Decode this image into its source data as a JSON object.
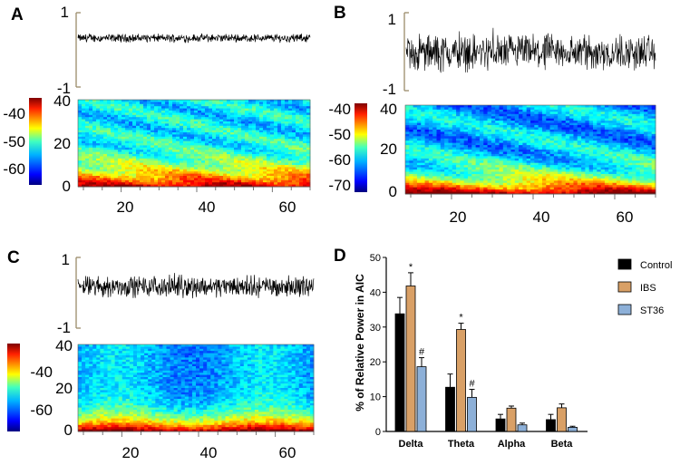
{
  "panels": {
    "A": {
      "letter": "A",
      "signal": {
        "y_top": "1",
        "y_bottom": "-1",
        "amplitude": 0.13
      },
      "spectrogram": {
        "yticks": [
          "40",
          "20",
          "0"
        ],
        "xticks": [
          "20",
          "40",
          "60"
        ]
      },
      "colorbar": {
        "ticks": [
          "-40",
          "-50",
          "-60"
        ]
      }
    },
    "B": {
      "letter": "B",
      "signal": {
        "y_top": "1",
        "y_bottom": "-1",
        "amplitude": 0.55
      },
      "spectrogram": {
        "yticks": [
          "40",
          "20",
          "0"
        ],
        "xticks": [
          "20",
          "40",
          "60"
        ]
      },
      "colorbar": {
        "ticks": [
          "-40",
          "-50",
          "-60",
          "-70"
        ]
      }
    },
    "C": {
      "letter": "C",
      "signal": {
        "y_top": "1",
        "y_bottom": "-1",
        "amplitude": 0.35
      },
      "spectrogram": {
        "yticks": [
          "40",
          "20",
          "0"
        ],
        "xticks": [
          "20",
          "40",
          "60"
        ]
      },
      "colorbar": {
        "ticks": [
          "-40",
          "-60"
        ]
      }
    }
  },
  "chart_data": {
    "type": "bar",
    "panel_letter": "D",
    "categories": [
      "Delta",
      "Theta",
      "Alpha",
      "Beta"
    ],
    "ylabel": "% of Relative Power in AIC",
    "ylim": [
      0,
      50
    ],
    "yticks": [
      "0",
      "10",
      "20",
      "30",
      "40",
      "50"
    ],
    "series": [
      {
        "name": "Control",
        "color": "#000000",
        "values": [
          33.8,
          12.7,
          3.6,
          3.4
        ],
        "errors": [
          4.7,
          3.8,
          1.3,
          1.5
        ]
      },
      {
        "name": "IBS",
        "color": "#d9a066",
        "values": [
          41.8,
          29.3,
          6.7,
          6.8
        ],
        "errors": [
          3.8,
          1.8,
          0.6,
          1.1
        ]
      },
      {
        "name": "ST36",
        "color": "#8db0d8",
        "values": [
          18.6,
          9.8,
          1.9,
          1.2
        ],
        "errors": [
          2.6,
          2.3,
          0.5,
          0.3
        ]
      }
    ],
    "annotations": [
      {
        "category": "Delta",
        "series": "IBS",
        "text": "*"
      },
      {
        "category": "Delta",
        "series": "ST36",
        "text": "#"
      },
      {
        "category": "Theta",
        "series": "IBS",
        "text": "*"
      },
      {
        "category": "Theta",
        "series": "ST36",
        "text": "#"
      }
    ],
    "legend": "right"
  }
}
